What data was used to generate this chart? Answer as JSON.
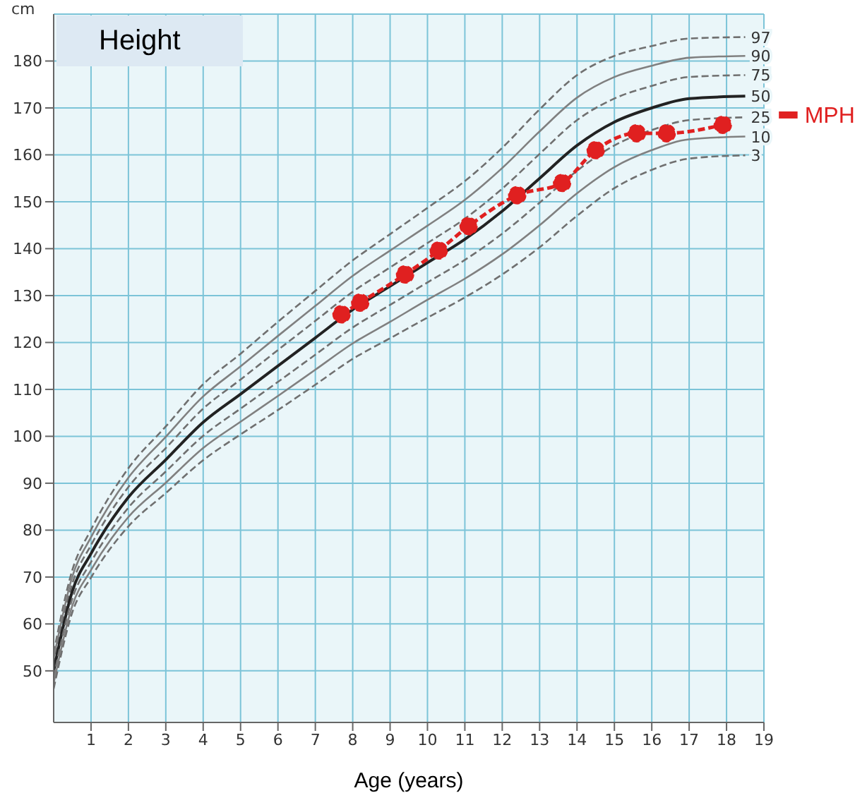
{
  "chart_data": {
    "type": "line",
    "title": "Height",
    "xlabel": "Age (years)",
    "ylabel": "cm",
    "xlim": [
      0,
      19
    ],
    "xticks": [
      1,
      2,
      3,
      4,
      5,
      6,
      7,
      8,
      9,
      10,
      11,
      12,
      13,
      14,
      15,
      16,
      17,
      18,
      19
    ],
    "ylim": [
      39,
      190
    ],
    "yticks": [
      50,
      60,
      70,
      80,
      90,
      100,
      110,
      120,
      130,
      140,
      150,
      160,
      170,
      180
    ],
    "grid": true,
    "legend": false,
    "series": [
      {
        "name": "97",
        "color": "#707070",
        "line_style": "dashed",
        "marker": "none",
        "x": [
          0,
          0.5,
          1,
          2,
          3,
          4,
          5,
          6,
          7,
          8,
          9,
          10,
          11,
          12,
          13,
          14,
          15,
          16,
          17,
          18.5
        ],
        "values": [
          53.8,
          71.5,
          80.1,
          93.2,
          102.1,
          111.1,
          117.6,
          124.4,
          131,
          137.5,
          143.1,
          148.7,
          154.4,
          161.5,
          169.7,
          177,
          181.1,
          183.2,
          184.8,
          185.1
        ]
      },
      {
        "name": "90",
        "color": "#808080",
        "line_style": "solid",
        "marker": "none",
        "x": [
          0,
          0.5,
          1,
          2,
          3,
          4,
          5,
          6,
          7,
          8,
          9,
          10,
          11,
          12,
          13,
          14,
          15,
          16,
          17,
          18.5
        ],
        "values": [
          52.6,
          70.1,
          78.5,
          91.2,
          99.9,
          108.5,
          114.9,
          121.4,
          127.8,
          134.2,
          139.6,
          144.9,
          150.4,
          157.2,
          165,
          172.2,
          176.6,
          179,
          180.7,
          181.1
        ]
      },
      {
        "name": "75",
        "color": "#707070",
        "line_style": "dashed",
        "marker": "none",
        "x": [
          0,
          0.5,
          1,
          2,
          3,
          4,
          5,
          6,
          7,
          8,
          9,
          10,
          11,
          12,
          13,
          14,
          15,
          16,
          17,
          18.5
        ],
        "values": [
          51.3,
          68.6,
          76.8,
          89.2,
          97.5,
          105.9,
          112.1,
          118.4,
          124.6,
          130.8,
          136,
          141.2,
          146.4,
          152.8,
          160.2,
          167.4,
          172,
          174.7,
          176.6,
          177
        ]
      },
      {
        "name": "50",
        "color": "#222222",
        "line_style": "solid",
        "marker": "none",
        "x": [
          0,
          0.5,
          1,
          2,
          3,
          4,
          5,
          6,
          7,
          8,
          9,
          10,
          11,
          12,
          13,
          14,
          15,
          16,
          17,
          18.5
        ],
        "values": [
          50,
          67,
          75,
          87,
          95,
          103,
          109,
          115,
          121,
          127,
          132,
          137,
          142,
          148,
          155,
          162,
          167,
          170,
          172,
          172.5
        ]
      },
      {
        "name": "25",
        "color": "#707070",
        "line_style": "dashed",
        "marker": "none",
        "x": [
          0,
          0.5,
          1,
          2,
          3,
          4,
          5,
          6,
          7,
          8,
          9,
          10,
          11,
          12,
          13,
          14,
          15,
          16,
          17,
          18.5
        ],
        "values": [
          48.7,
          65.4,
          73.2,
          84.8,
          92.5,
          100.1,
          105.9,
          111.6,
          117.4,
          123.2,
          128,
          132.8,
          137.6,
          143.2,
          149.8,
          156.6,
          162,
          165.3,
          167.4,
          168
        ]
      },
      {
        "name": "10",
        "color": "#808080",
        "line_style": "solid",
        "marker": "none",
        "x": [
          0,
          0.5,
          1,
          2,
          3,
          4,
          5,
          6,
          7,
          8,
          9,
          10,
          11,
          12,
          13,
          14,
          15,
          16,
          17,
          18.5
        ],
        "values": [
          47.4,
          63.9,
          71.5,
          82.8,
          90.1,
          97.5,
          103.1,
          108.6,
          114.2,
          119.8,
          124.4,
          129.1,
          133.6,
          138.8,
          145,
          151.8,
          157.4,
          161,
          163.3,
          163.9
        ]
      },
      {
        "name": "3",
        "color": "#707070",
        "line_style": "dashed",
        "marker": "none",
        "x": [
          0,
          0.5,
          1,
          2,
          3,
          4,
          5,
          6,
          7,
          8,
          9,
          10,
          11,
          12,
          13,
          14,
          15,
          16,
          17,
          18.5
        ],
        "values": [
          46.2,
          62.5,
          69.9,
          80.8,
          87.9,
          94.9,
          100.4,
          105.6,
          111,
          116.5,
          120.9,
          125.3,
          129.6,
          134.5,
          140.3,
          147,
          152.9,
          156.8,
          159.2,
          159.9
        ]
      },
      {
        "color": "#e02020",
        "line_style": "dashed",
        "marker": "circle",
        "x": [
          7.7,
          8.2,
          9.4,
          10.3,
          11.1,
          12.4,
          13.6,
          14.5,
          15.6,
          16.4,
          17.9
        ],
        "values": [
          126,
          128.5,
          134.5,
          139.6,
          144.8,
          151.4,
          154,
          161,
          164.6,
          164.6,
          166.4
        ]
      }
    ],
    "ref_lines": [
      {
        "axis": "y",
        "value": 168.5,
        "label": "MPH",
        "color": "#e02020"
      }
    ]
  }
}
